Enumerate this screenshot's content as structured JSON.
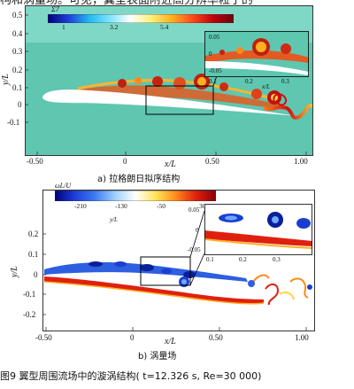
{
  "top_text": "构和涡量场。可见，翼型表面附近高分辨率粒子的",
  "figure_caption": "图9   翼型周围流场中的漩涡结构( t=12.326 s, Re=30 000)",
  "panel_a": {
    "caption": "a)    拉格朗日拟序结构",
    "xlabel": "x/L",
    "ylabel": "y/L",
    "colorbar": {
      "label": "Σ7",
      "ticks": [
        "1",
        "3.2",
        "5.4"
      ],
      "colors": [
        "#00007a",
        "#1d3fd9",
        "#22b8f0",
        "#7fe3ff",
        "#ffffff",
        "#fff07a",
        "#ffb020",
        "#ff4a1a",
        "#c0000f",
        "#6a0009"
      ]
    },
    "x_ticks": [
      "-0.50",
      "0",
      "0.50",
      "1.00"
    ],
    "y_ticks": [
      "0.5",
      "0.4",
      "0.3",
      "0.2",
      "0.1",
      "0",
      "-0.1"
    ],
    "inset": {
      "x_ticks": [
        "0.1",
        "0.2",
        "0.3"
      ],
      "y_ticks": [
        "0.05",
        "0",
        "-0.05"
      ],
      "xlabel": "x/L"
    }
  },
  "panel_b": {
    "caption": "b)    涡量场",
    "xlabel": "x/L",
    "ylabel": "y/L",
    "colorbar": {
      "label": "ωL/U",
      "ticks": [
        "-210",
        "-130",
        "-50",
        "30"
      ],
      "colors": [
        "#00007a",
        "#1d3fd9",
        "#3f7cf0",
        "#9fd0ff",
        "#ffffff",
        "#ffe45a",
        "#ff8a1a",
        "#e0200f",
        "#8a0007"
      ]
    },
    "x_ticks": [
      "-0.50",
      "0",
      "0.50",
      "1.00"
    ],
    "y_ticks": [
      "0.2",
      "0.1",
      "0",
      "-0.1",
      "-0.2"
    ],
    "inset": {
      "ylabel": "y/L",
      "x_ticks": [
        "0.1",
        "0.2",
        "0.3"
      ],
      "y_ticks": [
        "0.05",
        "0",
        "-0.05"
      ]
    }
  }
}
